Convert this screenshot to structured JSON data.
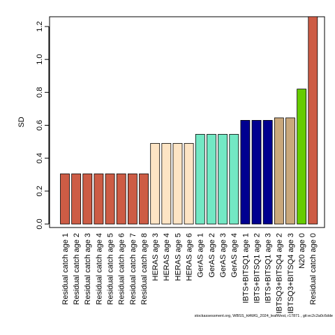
{
  "chart_data": {
    "type": "bar",
    "ylabel": "SD",
    "xlabel": "",
    "title": "",
    "ylim": [
      0,
      1.26
    ],
    "yticks": [
      0.0,
      0.2,
      0.4,
      0.6,
      0.8,
      1.0,
      1.2
    ],
    "ytick_labels": [
      "0.0",
      "0.2",
      "0.4",
      "0.6",
      "0.8",
      "1.0",
      "1.2"
    ],
    "grid": false,
    "categories": [
      "Residual catch age 1",
      "Residual catch age 2",
      "Residual catch age 3",
      "Residual catch age 4",
      "Residual catch age 5",
      "Residual catch age 6",
      "Residual catch age 7",
      "Residual catch age 8",
      "HERAS age 3",
      "HERAS age 4",
      "HERAS age 5",
      "HERAS age 6",
      "GerAS age 1",
      "GerAS age 2",
      "GerAS age 3",
      "GerAS age 4",
      "IBTS+BITSQ1 age 1",
      "IBTS+BITSQ1 age 2",
      "IBTS+BITSQ1 age 3",
      "IBTSQ3+BITSQ4 age 2",
      "IBTSQ3+BITSQ4 age 3",
      "N20 age 0",
      "Residual catch age 0"
    ],
    "values": [
      0.305,
      0.305,
      0.305,
      0.305,
      0.305,
      0.305,
      0.305,
      0.305,
      0.49,
      0.49,
      0.49,
      0.49,
      0.545,
      0.545,
      0.545,
      0.545,
      0.63,
      0.63,
      0.63,
      0.645,
      0.645,
      0.82,
      1.26
    ],
    "colors": [
      "#cd5c45",
      "#cd5c45",
      "#cd5c45",
      "#cd5c45",
      "#cd5c45",
      "#cd5c45",
      "#cd5c45",
      "#cd5c45",
      "#fde4c4",
      "#fde4c4",
      "#fde4c4",
      "#fde4c4",
      "#73e8c4",
      "#73e8c4",
      "#73e8c4",
      "#73e8c4",
      "#000090",
      "#000090",
      "#000090",
      "#caa87c",
      "#caa87c",
      "#66cc00",
      "#cd5c45"
    ]
  },
  "footer": "stockassessment.org, WBSS_HAWG_2024_leafWest, r17871 , git:ec2c2a0c6dde"
}
